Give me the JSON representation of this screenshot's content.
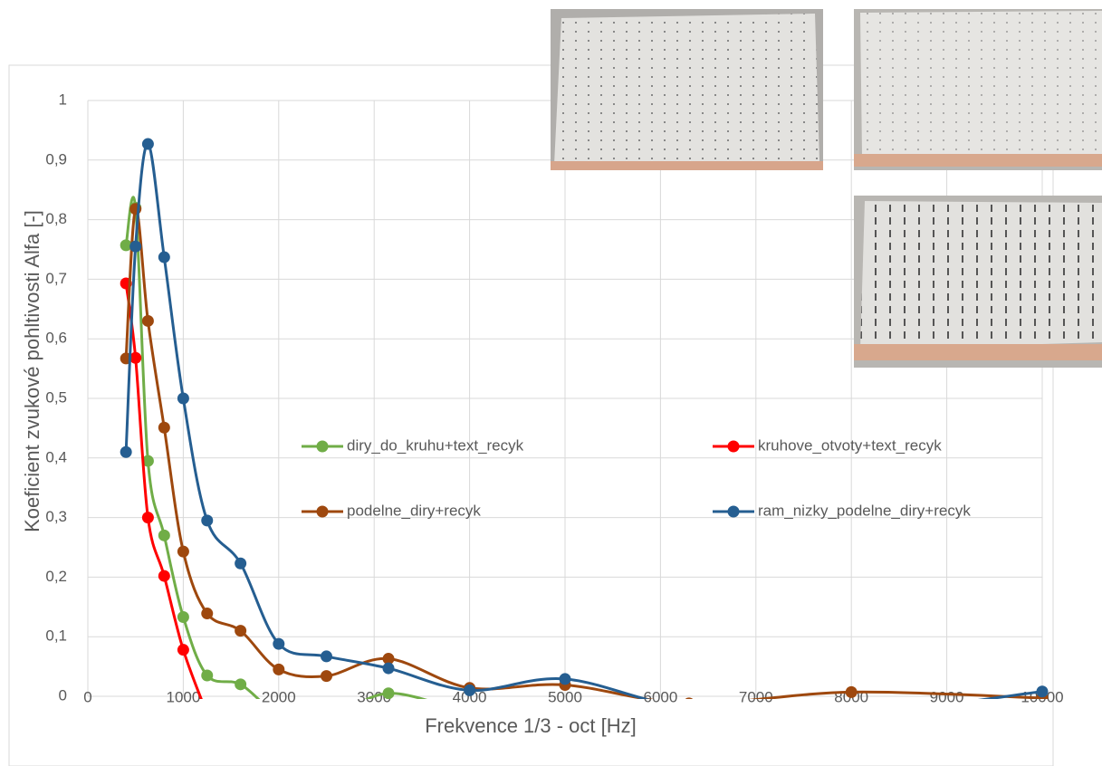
{
  "chart_data": {
    "type": "line",
    "x_label": "Frekvence 1/3 - oct [Hz]",
    "y_label": "Koeficient zvukové pohltivosti Alfa [-]",
    "x": [
      400,
      500,
      630,
      800,
      1000,
      1250,
      1600,
      2000,
      2500,
      3150,
      4000,
      5000,
      6300,
      8000,
      10000
    ],
    "series": [
      {
        "name": "diry_do_kruhu+text_recyk",
        "color": "#70ad47",
        "values": [
          0.757,
          0.82,
          0.395,
          0.27,
          0.133,
          0.035,
          0.02,
          -0.03,
          -0.04,
          0.005,
          -0.03,
          null,
          null,
          null,
          null
        ]
      },
      {
        "name": "kruhove_otvoty+text_recyk",
        "color": "#ff0000",
        "values": [
          0.693,
          0.568,
          0.3,
          0.202,
          0.078,
          -0.03,
          null,
          null,
          null,
          null,
          null,
          null,
          null,
          null,
          null
        ]
      },
      {
        "name": "podelne_diry+recyk",
        "color": "#9e480e",
        "values": [
          0.567,
          0.818,
          0.63,
          0.451,
          0.243,
          0.139,
          0.11,
          0.045,
          0.034,
          0.063,
          0.014,
          0.019,
          -0.012,
          0.007,
          -0.003
        ]
      },
      {
        "name": "ram_nizky_podelne_diry+recyk",
        "color": "#255e91",
        "values": [
          0.41,
          0.755,
          0.927,
          0.737,
          0.5,
          0.295,
          0.223,
          0.088,
          0.067,
          0.047,
          0.01,
          0.029,
          -0.02,
          -0.03,
          0.008
        ]
      }
    ],
    "xlim": [
      0,
      10000
    ],
    "xticks": [
      0,
      1000,
      2000,
      3000,
      4000,
      5000,
      6000,
      7000,
      8000,
      9000,
      10000
    ],
    "ylim": [
      0,
      1
    ],
    "yticks": [
      0,
      {
        "value": 0.1,
        "label": "0,1"
      },
      {
        "value": 0.2,
        "label": "0,2"
      },
      {
        "value": 0.3,
        "label": "0,3"
      },
      {
        "value": 0.4,
        "label": "0,4"
      },
      {
        "value": 0.5,
        "label": "0,5"
      },
      {
        "value": 0.6,
        "label": "0,6"
      },
      {
        "value": 0.7,
        "label": "0,7"
      },
      {
        "value": 0.8,
        "label": "0,8"
      },
      {
        "value": 0.9,
        "label": "0,9"
      },
      1
    ],
    "grid": true,
    "smooth": true,
    "legend": "inside"
  }
}
